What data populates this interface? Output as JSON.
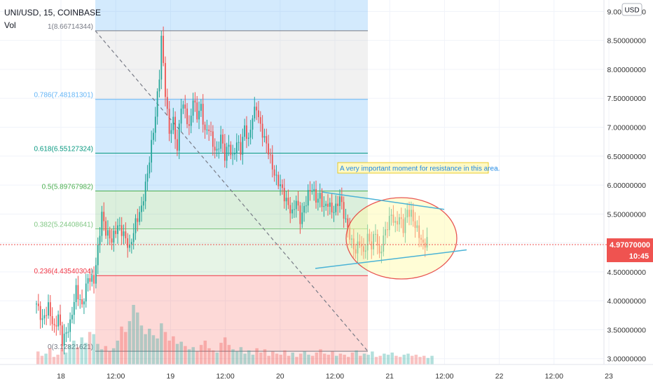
{
  "header": {
    "symbol_line": "UNI/USD, 15, COINBASE",
    "volume_label": "Vol"
  },
  "currency_button": "USD",
  "price_tag": {
    "value": "4.97070000",
    "countdown": "10:45"
  },
  "annotation": "A very important moment for resistance in this area.",
  "colors": {
    "up": "#26a69a",
    "down": "#ef5350",
    "axis_text": "#333333",
    "fib_zone_top": "#2196f3",
    "fib_zone_bottom": "#f44336",
    "trendline": "#4ab3d6",
    "ellipse_fill": "#fffaa8",
    "ellipse_stroke": "#e53935"
  },
  "chart_data": {
    "type": "candlestick",
    "ylim": [
      2.9,
      9.15
    ],
    "y_ticks": [
      {
        "value": 3.0,
        "label": "3.00000000"
      },
      {
        "value": 3.5,
        "label": "3.50000000"
      },
      {
        "value": 4.0,
        "label": "4.00000000"
      },
      {
        "value": 4.5,
        "label": "4.50000000"
      },
      {
        "value": 5.0,
        "label": "5.00000000"
      },
      {
        "value": 5.5,
        "label": "5.50000000"
      },
      {
        "value": 6.0,
        "label": "6.00000000"
      },
      {
        "value": 6.5,
        "label": "6.50000000"
      },
      {
        "value": 7.0,
        "label": "7.00000000"
      },
      {
        "value": 7.5,
        "label": "7.50000000"
      },
      {
        "value": 8.0,
        "label": "8.00000000"
      },
      {
        "value": 8.5,
        "label": "8.50000000"
      },
      {
        "value": 9.0,
        "label": "9.00000000"
      }
    ],
    "x_ticks": [
      "18",
      "12:00",
      "19",
      "12:00",
      "20",
      "12:00",
      "21",
      "12:00",
      "22",
      "12:00",
      "23"
    ],
    "fibonacci_levels": [
      {
        "ratio": 1,
        "price": 8.66714344,
        "label": "1(8.66714344)",
        "color": "#787b86"
      },
      {
        "ratio": 0.786,
        "price": 7.48181301,
        "label": "0.786(7.48181301)",
        "color": "#64b5f6"
      },
      {
        "ratio": 0.618,
        "price": 6.55127324,
        "label": "0.618(6.55127324)",
        "color": "#089981"
      },
      {
        "ratio": 0.5,
        "price": 5.89767982,
        "label": "0.5(5.89767982)",
        "color": "#4caf50"
      },
      {
        "ratio": 0.382,
        "price": 5.24408641,
        "label": "0.382(5.24408641)",
        "color": "#81c784"
      },
      {
        "ratio": 0.236,
        "price": 4.43540304,
        "label": "0.236(4.43540304)",
        "color": "#f23645"
      },
      {
        "ratio": 0,
        "price": 3.12821621,
        "label": "0(3.12821621)",
        "color": "#787b86"
      }
    ],
    "close_path": [
      [
        0,
        3.95
      ],
      [
        3,
        3.65
      ],
      [
        6,
        3.9
      ],
      [
        9,
        3.5
      ],
      [
        11,
        3.75
      ],
      [
        13,
        3.3
      ],
      [
        15,
        3.45
      ],
      [
        17,
        3.6
      ],
      [
        20,
        4.2
      ],
      [
        23,
        3.9
      ],
      [
        26,
        4.4
      ],
      [
        29,
        4.35
      ],
      [
        31,
        4.9
      ],
      [
        33,
        5.5
      ],
      [
        35,
        5.2
      ],
      [
        38,
        5.05
      ],
      [
        41,
        5.3
      ],
      [
        44,
        5.15
      ],
      [
        47,
        4.9
      ],
      [
        50,
        5.35
      ],
      [
        53,
        5.6
      ],
      [
        56,
        6.2
      ],
      [
        58,
        6.7
      ],
      [
        60,
        7.2
      ],
      [
        62,
        7.9
      ],
      [
        63,
        8.55
      ],
      [
        65,
        7.6
      ],
      [
        67,
        6.9
      ],
      [
        69,
        7.1
      ],
      [
        71,
        6.6
      ],
      [
        73,
        7.4
      ],
      [
        75,
        7.3
      ],
      [
        77,
        6.95
      ],
      [
        79,
        7.5
      ],
      [
        81,
        7.2
      ],
      [
        83,
        7.35
      ],
      [
        85,
        6.9
      ],
      [
        87,
        7.0
      ],
      [
        89,
        6.7
      ],
      [
        91,
        6.55
      ],
      [
        93,
        6.85
      ],
      [
        95,
        6.5
      ],
      [
        97,
        6.7
      ],
      [
        99,
        6.45
      ],
      [
        101,
        6.75
      ],
      [
        103,
        6.6
      ],
      [
        105,
        7.0
      ],
      [
        107,
        6.75
      ],
      [
        109,
        7.2
      ],
      [
        111,
        7.35
      ],
      [
        113,
        7.0
      ],
      [
        115,
        6.8
      ],
      [
        117,
        6.6
      ],
      [
        119,
        6.3
      ],
      [
        121,
        6.1
      ],
      [
        123,
        6.0
      ],
      [
        125,
        5.8
      ],
      [
        127,
        5.65
      ],
      [
        129,
        5.5
      ],
      [
        131,
        5.75
      ],
      [
        133,
        5.4
      ],
      [
        135,
        5.6
      ],
      [
        137,
        5.85
      ],
      [
        139,
        5.95
      ],
      [
        141,
        5.75
      ],
      [
        143,
        5.8
      ],
      [
        145,
        5.6
      ],
      [
        147,
        5.7
      ],
      [
        149,
        5.55
      ],
      [
        151,
        5.6
      ],
      [
        153,
        5.8
      ],
      [
        155,
        5.5
      ],
      [
        157,
        5.25
      ],
      [
        159,
        5.0
      ],
      [
        161,
        4.85
      ],
      [
        163,
        5.05
      ],
      [
        165,
        4.8
      ],
      [
        167,
        5.1
      ],
      [
        169,
        4.95
      ],
      [
        171,
        5.2
      ],
      [
        173,
        4.75
      ],
      [
        175,
        5.1
      ],
      [
        177,
        5.3
      ],
      [
        179,
        5.5
      ],
      [
        181,
        5.3
      ],
      [
        183,
        5.45
      ],
      [
        185,
        5.25
      ],
      [
        187,
        5.55
      ],
      [
        189,
        5.5
      ],
      [
        191,
        5.3
      ],
      [
        193,
        5.15
      ],
      [
        195,
        4.95
      ],
      [
        197,
        5.05
      ]
    ],
    "volume": [
      12,
      8,
      10,
      15,
      7,
      9,
      14,
      11,
      18,
      22,
      16,
      25,
      20,
      30,
      28,
      19,
      14,
      17,
      12,
      15,
      22,
      35,
      30,
      40,
      55,
      48,
      36,
      28,
      33,
      27,
      24,
      38,
      30,
      22,
      26,
      19,
      21,
      17,
      14,
      16,
      12,
      18,
      22,
      15,
      13,
      11,
      20,
      25,
      18,
      14,
      12,
      16,
      10,
      13,
      9,
      15,
      11,
      14,
      8,
      12,
      10,
      9,
      13,
      8,
      11,
      7,
      10,
      12,
      9,
      8,
      11,
      14,
      10,
      9,
      12,
      8,
      10,
      9,
      7,
      11,
      13,
      8,
      10,
      9,
      12,
      7,
      8,
      10,
      9,
      11,
      8,
      7,
      9,
      10,
      8,
      9,
      7,
      8,
      6,
      8
    ]
  }
}
